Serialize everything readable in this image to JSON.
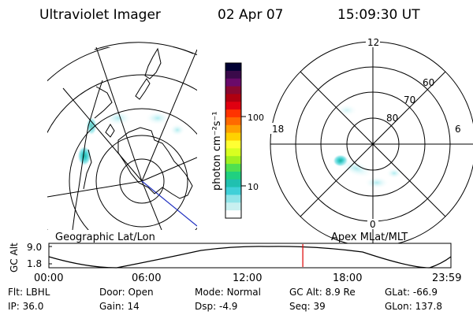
{
  "header": {
    "instrument": "Ultraviolet Imager",
    "date": "02 Apr 07",
    "time": "15:09:30 UT"
  },
  "geo_panel": {
    "label": "Geographic Lat/Lon"
  },
  "colorbar": {
    "unit_label": "photon cm⁻²s⁻¹",
    "ticks": [
      "100",
      "10"
    ],
    "colors": [
      "#000033",
      "#3a0a4a",
      "#6a0a6a",
      "#8a0830",
      "#b00010",
      "#e00010",
      "#ff3300",
      "#ff6a00",
      "#ffa000",
      "#ffd200",
      "#ffff33",
      "#d8ff20",
      "#a0f020",
      "#50e050",
      "#20d080",
      "#20c0b0",
      "#40d0d8",
      "#90e4e8",
      "#c8f0f0",
      "#ffffff"
    ]
  },
  "apex_panel": {
    "label": "Apex MLat/MLT",
    "mlt_labels": [
      "12",
      "18",
      "6",
      "0"
    ],
    "mlat_labels": [
      "60",
      "70",
      "80"
    ]
  },
  "altitude_strip": {
    "axis_title": "GC Alt",
    "y_ticks": [
      "9.0",
      "1.8"
    ],
    "x_ticks": [
      "00:00",
      "06:00",
      "12:00",
      "18:00",
      "23:59"
    ],
    "current_time_hours": 15.158,
    "marker_color": "#dd0000"
  },
  "status": [
    {
      "key": "Flt:",
      "value": "LBHL"
    },
    {
      "key": "Door:",
      "value": "Open"
    },
    {
      "key": "Mode:",
      "value": "Normal"
    },
    {
      "key": "GC Alt:",
      "value": "8.9 Re"
    },
    {
      "key": "GLat:",
      "value": "-66.9"
    },
    {
      "key": "IP:",
      "value": "36.0"
    },
    {
      "key": "Gain:",
      "value": "14"
    },
    {
      "key": "Dsp:",
      "value": "-4.9"
    },
    {
      "key": "Seq:",
      "value": "39"
    },
    {
      "key": "GLon:",
      "value": "137.8"
    }
  ]
}
